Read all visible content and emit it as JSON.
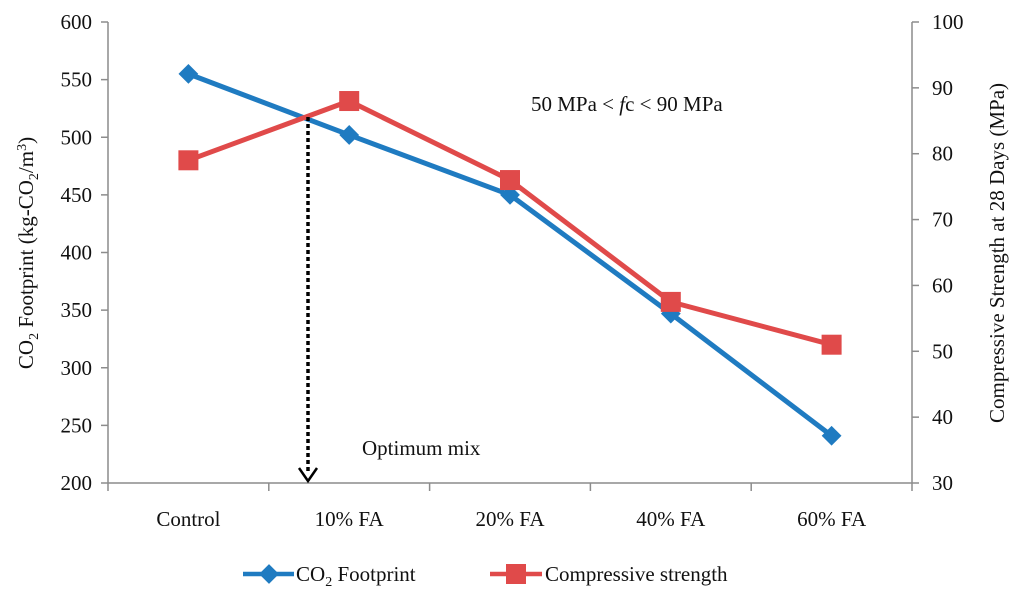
{
  "chart_data": {
    "type": "line",
    "title": "",
    "categories": [
      "Control",
      "10% FA",
      "20% FA",
      "40% FA",
      "60% FA"
    ],
    "xlabel": "",
    "y_left": {
      "label_main": "CO",
      "label_sub": "2",
      "label_rest": " Footprint (kg-CO",
      "label_sub2": "2",
      "label_rest2": "/m",
      "label_sup": "3",
      "label_end": ")",
      "label_plain": "CO2 Footprint (kg-CO2/m3)",
      "range": [
        200,
        600
      ],
      "ticks": [
        200,
        250,
        300,
        350,
        400,
        450,
        500,
        550,
        600
      ]
    },
    "y_right": {
      "label": "Compressive Strength at 28 Days (MPa)",
      "range": [
        30,
        100
      ],
      "ticks": [
        30,
        40,
        50,
        60,
        70,
        80,
        90,
        100
      ]
    },
    "series": [
      {
        "name": "CO2 Footprint",
        "legend_main": "CO",
        "legend_sub": "2",
        "legend_rest": " Footprint",
        "axis": "left",
        "marker": "diamond",
        "color": "#1f7bc1",
        "values": [
          555,
          502,
          450,
          347,
          241
        ]
      },
      {
        "name": "Compressive strength",
        "legend_main": "Compressive strength",
        "axis": "right",
        "marker": "square",
        "color": "#e04a4a",
        "values": [
          79,
          88,
          76,
          57.5,
          51
        ]
      }
    ],
    "annotations": {
      "range_text_1": "50 MPa < ",
      "range_text_italic": "f",
      "range_text_2": "c < 90 MPa",
      "optimum_label": "Optimum mix"
    },
    "grid": false,
    "legend_position": "bottom"
  }
}
